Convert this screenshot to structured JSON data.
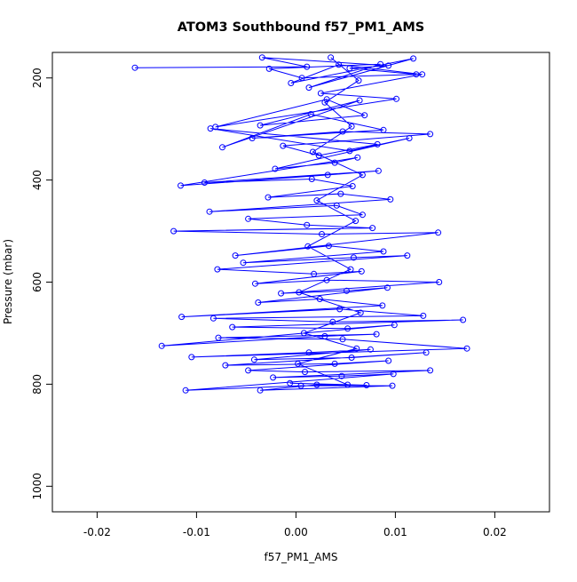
{
  "chart_data": {
    "type": "scatter",
    "title": "ATOM3 Southbound f57_PM1_AMS",
    "xlabel": "f57_PM1_AMS",
    "ylabel": "Pressure (mbar)",
    "xlim": [
      -0.0245,
      0.0255
    ],
    "ylim": [
      1050,
      150
    ],
    "y_reversed": true,
    "x_ticks": [
      -0.02,
      -0.01,
      0.0,
      0.01,
      0.02
    ],
    "x_tick_labels": [
      "-0.02",
      "-0.01",
      "0.00",
      "0.01",
      "0.02"
    ],
    "y_ticks": [
      200,
      400,
      600,
      800,
      1000
    ],
    "y_tick_labels": [
      "200",
      "400",
      "600",
      "800",
      "1000"
    ],
    "grid": false,
    "colors": {
      "series": "#0000ff",
      "axes": "#000000",
      "background": "#ffffff"
    },
    "series": [
      {
        "marker": "open-circle",
        "connected": true,
        "points": [
          [
            -0.0162,
            180
          ],
          [
            0.0011,
            178
          ],
          [
            -0.0034,
            160
          ],
          [
            0.0093,
            176
          ],
          [
            0.0054,
            181
          ],
          [
            0.0121,
            193
          ],
          [
            0.0006,
            200
          ],
          [
            -0.0027,
            182
          ],
          [
            0.0085,
            173
          ],
          [
            0.0013,
            219
          ],
          [
            0.0118,
            162
          ],
          [
            -0.0005,
            210
          ],
          [
            0.0043,
            174
          ],
          [
            0.0127,
            193
          ],
          [
            0.0025,
            230
          ],
          [
            0.0101,
            241
          ],
          [
            -0.0081,
            296
          ],
          [
            0.0031,
            242
          ],
          [
            0.0069,
            273
          ],
          [
            -0.0036,
            293
          ],
          [
            0.0064,
            244
          ],
          [
            -0.0074,
            336
          ],
          [
            0.0015,
            271
          ],
          [
            0.0088,
            302
          ],
          [
            -0.0044,
            318
          ],
          [
            0.0047,
            305
          ],
          [
            0.0135,
            310
          ],
          [
            -0.0013,
            333
          ],
          [
            0.0023,
            352
          ],
          [
            0.0082,
            330
          ],
          [
            -0.0086,
            299
          ],
          [
            0.0054,
            343
          ],
          [
            0.0114,
            318
          ],
          [
            -0.0021,
            378
          ],
          [
            0.0039,
            366
          ],
          [
            0.0062,
            356
          ],
          [
            -0.0116,
            411
          ],
          [
            0.0032,
            390
          ],
          [
            0.0083,
            382
          ],
          [
            -0.0092,
            405
          ],
          [
            0.0016,
            398
          ],
          [
            0.0057,
            412
          ],
          [
            -0.0028,
            434
          ],
          [
            0.0045,
            427
          ],
          [
            0.0095,
            438
          ],
          [
            -0.0087,
            462
          ],
          [
            0.0041,
            450
          ],
          [
            0.0067,
            468
          ],
          [
            -0.0048,
            476
          ],
          [
            0.0011,
            488
          ],
          [
            0.0077,
            494
          ],
          [
            -0.0123,
            500
          ],
          [
            0.0026,
            506
          ],
          [
            0.0143,
            503
          ],
          [
            -0.0061,
            548
          ],
          [
            0.0033,
            529
          ],
          [
            0.0088,
            540
          ],
          [
            -0.0053,
            562
          ],
          [
            0.0058,
            552
          ],
          [
            0.0112,
            548
          ],
          [
            -0.0079,
            575
          ],
          [
            0.0018,
            584
          ],
          [
            0.0066,
            579
          ],
          [
            -0.0041,
            603
          ],
          [
            0.0031,
            596
          ],
          [
            0.0144,
            600
          ],
          [
            -0.0015,
            622
          ],
          [
            0.0051,
            617
          ],
          [
            0.0092,
            611
          ],
          [
            -0.0038,
            640
          ],
          [
            0.0024,
            633
          ],
          [
            0.0087,
            646
          ],
          [
            -0.0115,
            668
          ],
          [
            0.0044,
            653
          ],
          [
            0.0128,
            666
          ],
          [
            -0.0083,
            671
          ],
          [
            0.0037,
            678
          ],
          [
            0.0168,
            674
          ],
          [
            -0.0064,
            688
          ],
          [
            0.0052,
            691
          ],
          [
            0.0099,
            684
          ],
          [
            -0.0135,
            725
          ],
          [
            0.0029,
            706
          ],
          [
            0.0081,
            702
          ],
          [
            -0.0078,
            709
          ],
          [
            0.0047,
            712
          ],
          [
            0.0172,
            730
          ],
          [
            -0.0105,
            747
          ],
          [
            0.0013,
            738
          ],
          [
            0.0075,
            732
          ],
          [
            -0.0042,
            752
          ],
          [
            0.0056,
            748
          ],
          [
            0.0131,
            738
          ],
          [
            -0.0071,
            763
          ],
          [
            0.0039,
            760
          ],
          [
            0.0093,
            754
          ],
          [
            -0.0048,
            773
          ],
          [
            0.0009,
            776
          ],
          [
            0.0135,
            773
          ],
          [
            -0.0023,
            787
          ],
          [
            0.0046,
            784
          ],
          [
            0.0098,
            780
          ],
          [
            -0.0111,
            812
          ],
          [
            0.0005,
            803
          ],
          [
            0.0097,
            803
          ],
          [
            -0.0036,
            812
          ],
          [
            0.0021,
            801
          ],
          [
            0.0071,
            802
          ],
          [
            -0.0006,
            798
          ],
          [
            0.0052,
            801
          ],
          [
            0.0002,
            760
          ],
          [
            0.0061,
            730
          ],
          [
            0.0008,
            700
          ],
          [
            0.0065,
            660
          ],
          [
            0.0003,
            620
          ],
          [
            0.0055,
            575
          ],
          [
            0.0012,
            530
          ],
          [
            0.006,
            480
          ],
          [
            0.0021,
            440
          ],
          [
            0.0067,
            390
          ],
          [
            0.0017,
            345
          ],
          [
            0.0056,
            295
          ],
          [
            0.0029,
            248
          ],
          [
            0.0063,
            205
          ],
          [
            0.0035,
            160
          ]
        ]
      }
    ]
  }
}
